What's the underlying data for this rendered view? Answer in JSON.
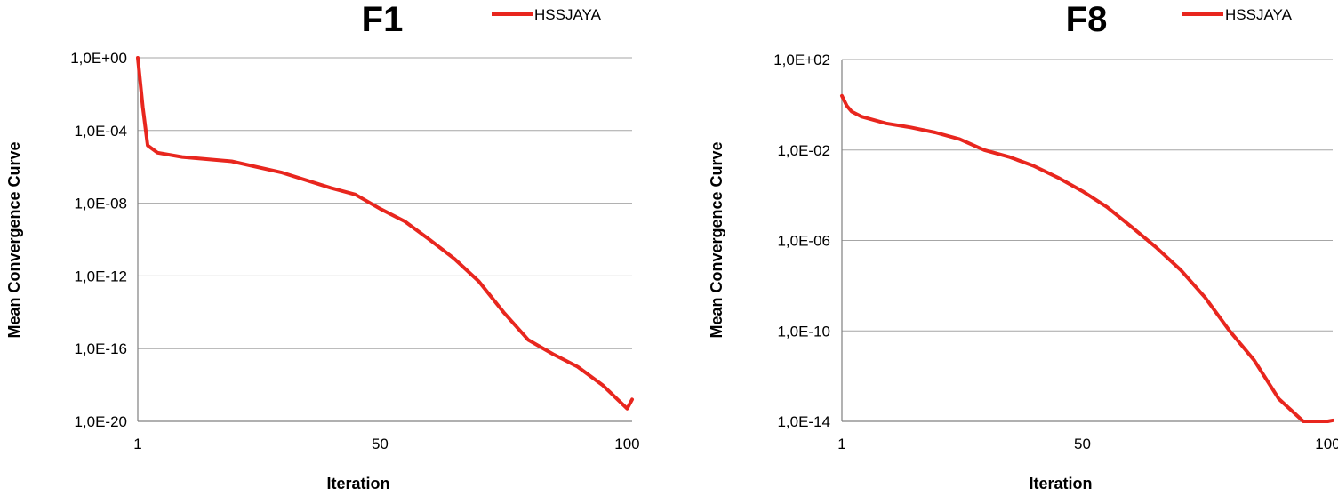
{
  "chart_data": [
    {
      "type": "line",
      "title": "F1",
      "xlabel": "Iteration",
      "ylabel": "Mean Convergence Curve",
      "y_scale": "log",
      "xlim": [
        1,
        101
      ],
      "ylim": [
        1e-20,
        1
      ],
      "x_ticks": [
        "1",
        "50",
        "100"
      ],
      "y_ticks": [
        "1,0E+00",
        "1,0E-04",
        "1,0E-08",
        "1,0E-12",
        "1,0E-16",
        "1,0E-20"
      ],
      "grid": "horizontal",
      "legend_position": "top-right",
      "series": [
        {
          "name": "HSSJAYA",
          "color": "#e8261e",
          "x": [
            1,
            2,
            3,
            5,
            10,
            20,
            30,
            40,
            45,
            50,
            55,
            60,
            65,
            70,
            75,
            80,
            85,
            90,
            95,
            100,
            101
          ],
          "y": [
            1.0,
            0.002,
            1.5e-05,
            6e-06,
            3.5e-06,
            2e-06,
            5e-07,
            7e-08,
            3e-08,
            5e-09,
            1e-09,
            1e-10,
            9e-12,
            5e-13,
            1e-14,
            3e-16,
            5e-17,
            1e-17,
            1e-18,
            5e-20,
            1.6e-19
          ]
        }
      ]
    },
    {
      "type": "line",
      "title": "F8",
      "xlabel": "Iteration",
      "ylabel": "Mean Convergence Curve",
      "y_scale": "log",
      "xlim": [
        1,
        101
      ],
      "ylim": [
        1e-14,
        100
      ],
      "x_ticks": [
        "1",
        "50",
        "100"
      ],
      "y_ticks": [
        "1,0E+02",
        "1,0E-02",
        "1,0E-06",
        "1,0E-10",
        "1,0E-14"
      ],
      "grid": "horizontal",
      "legend_position": "top-right",
      "series": [
        {
          "name": "HSSJAYA",
          "color": "#e8261e",
          "x": [
            1,
            2,
            3,
            5,
            10,
            15,
            20,
            25,
            30,
            35,
            40,
            45,
            50,
            55,
            60,
            65,
            70,
            75,
            80,
            85,
            90,
            95,
            100,
            101
          ],
          "y": [
            2.5,
            0.9,
            0.5,
            0.3,
            0.15,
            0.1,
            0.06,
            0.03,
            0.01,
            0.005,
            0.002,
            0.0006,
            0.00015,
            3e-05,
            4e-06,
            5e-07,
            5e-08,
            3e-09,
            1e-10,
            5e-12,
            1e-13,
            1e-14,
            1e-14,
            1.1e-14
          ]
        }
      ]
    }
  ]
}
